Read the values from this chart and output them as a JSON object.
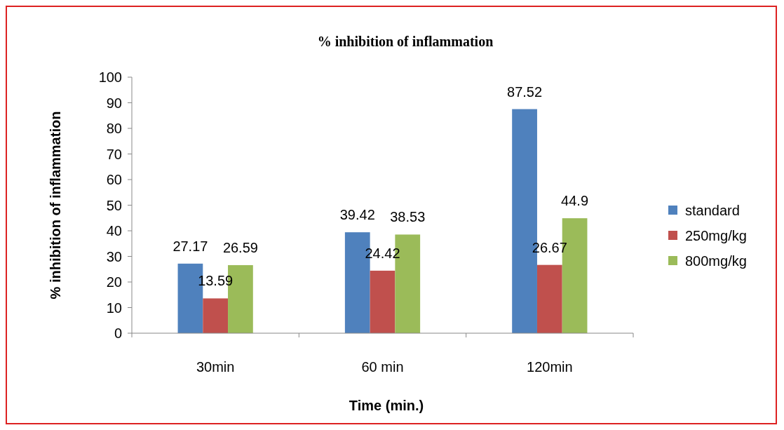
{
  "chart_data": {
    "type": "bar",
    "title": "% inhibition of inflammation",
    "xlabel": "Time (min.)",
    "ylabel": "% inhibition of inflammation",
    "categories": [
      "30min",
      "60 min",
      "120min"
    ],
    "series": [
      {
        "name": "standard",
        "color": "#4f81bd",
        "values": [
          27.17,
          39.42,
          87.52
        ]
      },
      {
        "name": "250mg/kg",
        "color": "#c0504d",
        "values": [
          13.59,
          24.42,
          26.67
        ]
      },
      {
        "name": "800mg/kg",
        "color": "#9bbb59",
        "values": [
          26.59,
          38.53,
          44.9
        ]
      }
    ],
    "ylim": [
      0,
      100
    ],
    "yticks": [
      0,
      10,
      20,
      30,
      40,
      50,
      60,
      70,
      80,
      90,
      100
    ],
    "data_labels": true,
    "legend": "right",
    "grid": false
  }
}
